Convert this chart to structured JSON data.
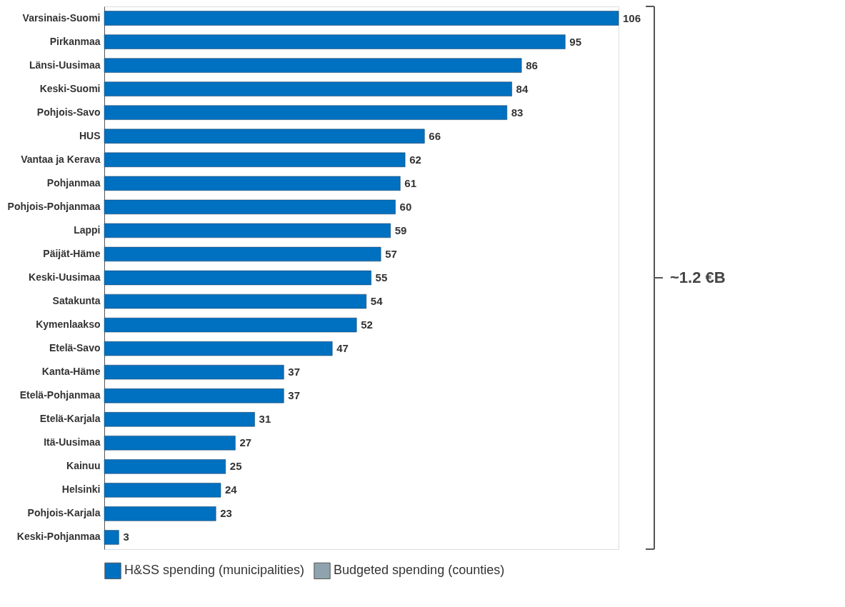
{
  "chart_data": {
    "type": "bar",
    "orientation": "horizontal",
    "data_labels": true,
    "legend": "bottom",
    "categories": [
      "Varsinais-Suomi",
      "Pirkanmaa",
      "Länsi-Uusimaa",
      "Keski-Suomi",
      "Pohjois-Savo",
      "HUS",
      "Vantaa ja Kerava",
      "Pohjanmaa",
      "Pohjois-Pohjanmaa",
      "Lappi",
      "Päijät-Häme",
      "Keski-Uusimaa",
      "Satakunta",
      "Kymenlaakso",
      "Etelä-Savo",
      "Kanta-Häme",
      "Etelä-Pohjanmaa",
      "Etelä-Karjala",
      "Itä-Uusimaa",
      "Kainuu",
      "Helsinki",
      "Pohjois-Karjala",
      "Keski-Pohjanmaa"
    ],
    "series": [
      {
        "name": "H&SS spending (municipalities)",
        "color": "#0070c0",
        "values": [
          106,
          95,
          86,
          84,
          83,
          66,
          62,
          61,
          60,
          59,
          57,
          55,
          54,
          52,
          47,
          37,
          37,
          31,
          27,
          25,
          24,
          23,
          3
        ]
      },
      {
        "name": "Budgeted spending (counties)",
        "color": "#8fa3ae",
        "values": [
          null,
          null,
          null,
          null,
          null,
          null,
          null,
          null,
          null,
          null,
          null,
          null,
          null,
          null,
          null,
          null,
          null,
          null,
          null,
          null,
          null,
          null,
          null
        ]
      }
    ],
    "annotations": [
      "~1.2 €B"
    ]
  }
}
